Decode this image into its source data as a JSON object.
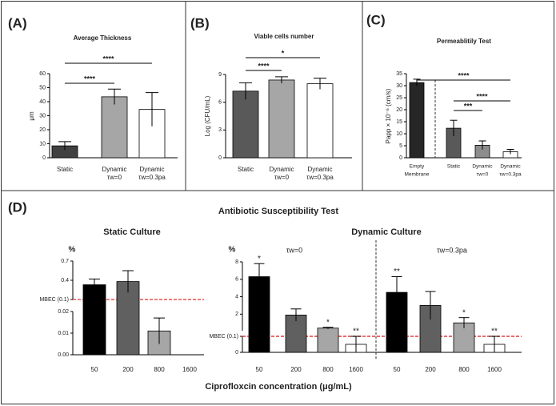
{
  "panel_labels": [
    "(A)",
    "(B)",
    "(C)",
    "(D)"
  ],
  "panel_d": {
    "title": "Antibiotic Susceptibility Test",
    "xlabel": "Ciprofloxcin concentration (μg/mL)"
  },
  "chart_data": [
    {
      "type": "bar",
      "title": "Average Thickness",
      "ylabel": "μm",
      "categories": [
        [
          "Static"
        ],
        [
          "Dynamic",
          "τw=0"
        ],
        [
          "Dynamic",
          "τw=0.3pa"
        ]
      ],
      "values": [
        8.5,
        43.5,
        34.5
      ],
      "errors": [
        3,
        5.5,
        12
      ],
      "colors": [
        "#404040",
        "#a6a6a6",
        "#ffffff"
      ],
      "ylim": [
        0,
        60
      ],
      "yticks": [
        0,
        10,
        20,
        30,
        40,
        50,
        60
      ],
      "significance": [
        "****",
        "****"
      ]
    },
    {
      "type": "bar",
      "title": "Viable cells number",
      "ylabel": "Log (CFU/mL)",
      "categories": [
        [
          "Static"
        ],
        [
          "Dynamic",
          "τw=0"
        ],
        [
          "Dynamic",
          "τw=0.3pa"
        ]
      ],
      "values": [
        7.2,
        8.4,
        8.0
      ],
      "errors": [
        0.9,
        0.35,
        0.6
      ],
      "colors": [
        "#595959",
        "#a6a6a6",
        "#ffffff"
      ],
      "ylim": [
        0,
        9
      ],
      "yticks": [
        0,
        3,
        6,
        9
      ],
      "significance": [
        "*",
        "****"
      ]
    },
    {
      "type": "bar",
      "title": "Permeablitily Test",
      "ylabel": "Papp × 10⁻⁶ (cm/s)",
      "categories": [
        [
          "Empty",
          "Membrane"
        ],
        [
          "Static"
        ],
        [
          "Dynamic",
          "τw=0"
        ],
        [
          "Dynamic",
          "τw=0.3pa"
        ]
      ],
      "values": [
        31.3,
        12.3,
        5.2,
        2.5
      ],
      "errors": [
        1.4,
        3.3,
        1.8,
        1
      ],
      "colors": [
        "#262626",
        "#595959",
        "#8c8c8c",
        "#ffffff"
      ],
      "ylim": [
        0,
        35
      ],
      "yticks": [
        0,
        5,
        10,
        15,
        20,
        25,
        30,
        35
      ],
      "significance": [
        "****",
        "****",
        "***"
      ]
    },
    {
      "type": "bar",
      "title": "Static Culture",
      "ylabel": "%",
      "categories": [
        [
          "50"
        ],
        [
          "200"
        ],
        [
          "800"
        ],
        [
          "1600"
        ]
      ],
      "values": [
        0.33,
        0.38,
        0.011,
        0
      ],
      "errors": [
        0.09,
        0.17,
        0.006,
        0
      ],
      "colors": [
        "#000000",
        "#606060",
        "#a6a6a6",
        "#ffffff"
      ],
      "ylim_segments": [
        [
          0,
          0.02
        ],
        [
          0.1,
          0.7
        ]
      ],
      "yticks": [
        {
          "value": 0,
          "label": "0.00"
        },
        {
          "value": 0.01,
          "label": "0.01"
        },
        {
          "value": 0.02,
          "label": "0.02"
        },
        {
          "value": 0.1,
          "label": "MBEC (0.1)"
        },
        0.4,
        0.7
      ],
      "threshold": 0.1
    },
    {
      "type": "grouped_bar",
      "title": "Dynamic Culture",
      "ylabel": "%",
      "categories": [
        [
          "50"
        ],
        [
          "200"
        ],
        [
          "800"
        ],
        [
          "1600"
        ]
      ],
      "colors": [
        "#000000",
        "#606060",
        "#a6a6a6",
        "#ffffff"
      ],
      "series": [
        {
          "name": "τw=0",
          "values": [
            6.3,
            1.9,
            0.4,
            0.05
          ],
          "errors": [
            1.5,
            0.7,
            0.1,
            0.05
          ],
          "stars": [
            "*",
            null,
            "*",
            "**"
          ]
        },
        {
          "name": "τw=0.3pa",
          "values": [
            4.5,
            3.0,
            1.0,
            0.05
          ],
          "errors": [
            1.8,
            1.6,
            0.6,
            0.05
          ],
          "stars": [
            "**",
            null,
            "*",
            "**"
          ]
        }
      ],
      "ylim_segments": [
        [
          0,
          0.1
        ],
        [
          0.1,
          8
        ]
      ],
      "yticks": [
        0,
        {
          "value": 0.1,
          "label": "MBEC (0.1)"
        },
        2,
        4,
        6,
        8
      ],
      "threshold": 0.1
    }
  ]
}
